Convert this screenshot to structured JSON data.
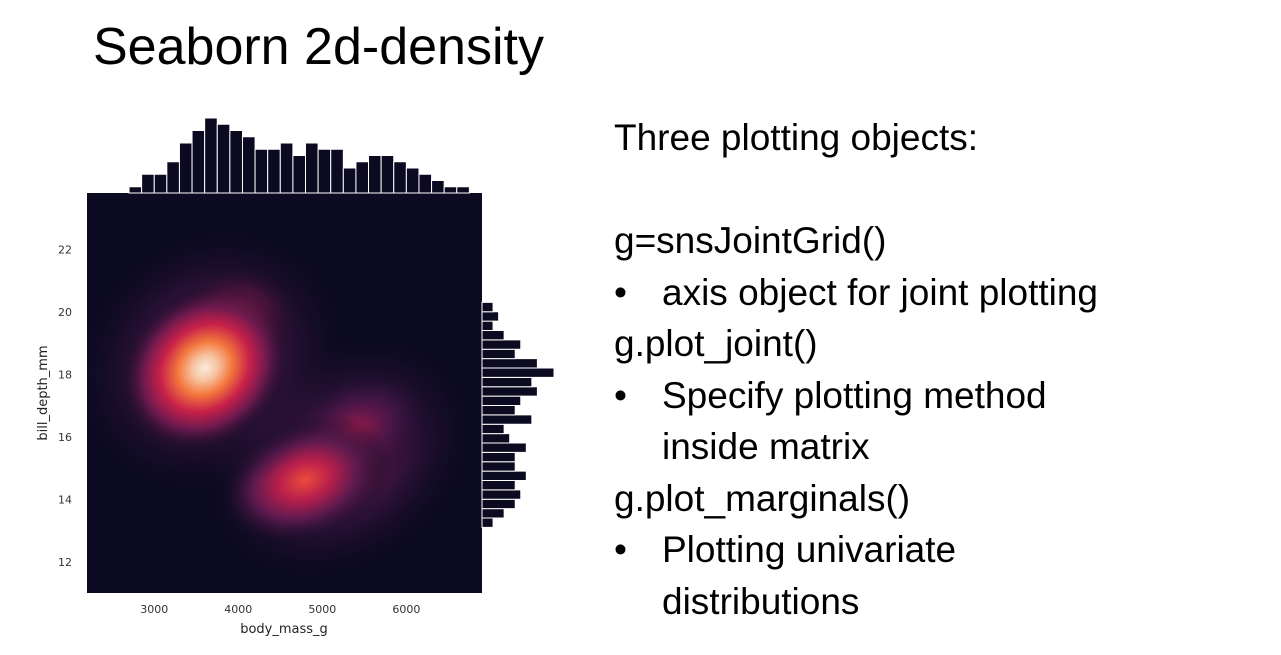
{
  "slide": {
    "title": "Seaborn 2d-density"
  },
  "text_panel": {
    "heading": "Three plotting objects:",
    "items": [
      {
        "code": "g=snsJointGrid()",
        "bullet": "axis object for joint plotting"
      },
      {
        "code": "g.plot_joint()",
        "bullet": "Specify plotting method inside matrix"
      },
      {
        "code": "g.plot_marginals()",
        "bullet": "Plotting univariate distributions"
      }
    ],
    "bullet_char": "•"
  },
  "chart_data": {
    "type": "heatmap",
    "title": "",
    "xlabel": "body_mass_g",
    "ylabel": "bill_depth_mm",
    "xlim": [
      2200,
      6900
    ],
    "ylim": [
      11,
      23.8
    ],
    "xticks": [
      3000,
      4000,
      5000,
      6000
    ],
    "yticks": [
      12,
      14,
      16,
      18,
      20,
      22
    ],
    "grid": false,
    "colormap": "rocket",
    "background_color": "#0b0a20",
    "density_peaks": [
      {
        "x": 3500,
        "y": 18.0,
        "relative_density": 1.0
      },
      {
        "x": 3900,
        "y": 18.7,
        "relative_density": 0.6
      },
      {
        "x": 4700,
        "y": 14.4,
        "relative_density": 0.55
      },
      {
        "x": 5400,
        "y": 15.3,
        "relative_density": 0.3
      }
    ],
    "marginal_x": {
      "type": "histogram",
      "bin_start": 2700,
      "bin_width": 150,
      "counts": [
        1,
        3,
        3,
        5,
        8,
        10,
        12,
        11,
        10,
        9,
        7,
        7,
        8,
        6,
        8,
        7,
        7,
        4,
        5,
        6,
        6,
        5,
        4,
        3,
        2,
        1,
        1
      ]
    },
    "marginal_y": {
      "type": "histogram",
      "bin_start": 13.1,
      "bin_width": 0.3,
      "counts": [
        2,
        4,
        6,
        7,
        6,
        8,
        6,
        6,
        8,
        5,
        4,
        9,
        6,
        7,
        10,
        9,
        13,
        10,
        6,
        7,
        4,
        2,
        3,
        2
      ]
    }
  }
}
